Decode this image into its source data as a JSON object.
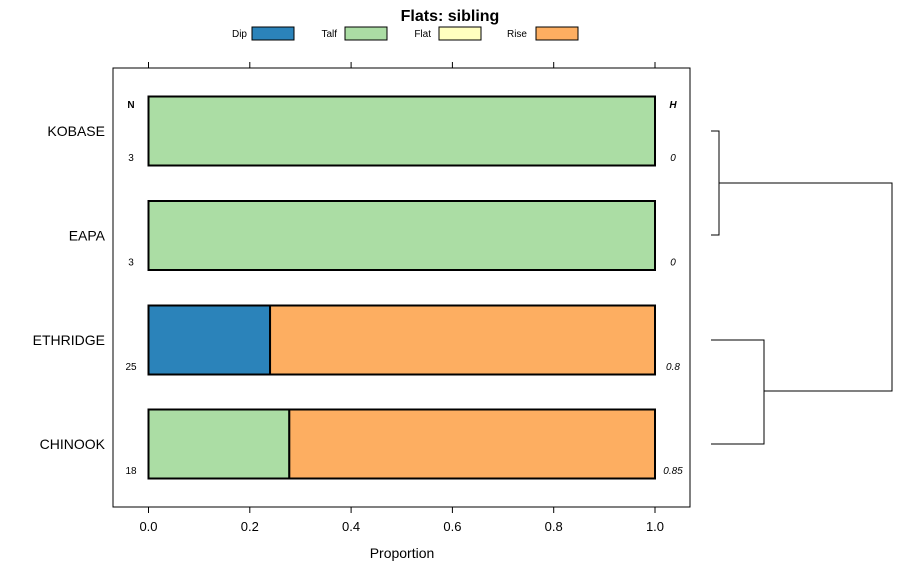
{
  "chart_data": {
    "type": "bar",
    "orientation": "horizontal",
    "stacked": true,
    "title": "Flats: sibling",
    "xlabel": "Proportion",
    "ylabel": "",
    "xlim": [
      -0.07,
      1.07
    ],
    "x_ticks": [
      0.0,
      0.2,
      0.4,
      0.6,
      0.8,
      1.0
    ],
    "x_tick_labels": [
      "0.0",
      "0.2",
      "0.4",
      "0.6",
      "0.8",
      "1.0"
    ],
    "categories": [
      "KOBASE",
      "EAPA",
      "ETHRIDGE",
      "CHINOOK"
    ],
    "series": [
      {
        "name": "Dip",
        "color": "#2B83BA",
        "values": [
          0,
          0,
          0.24,
          0
        ]
      },
      {
        "name": "Talf",
        "color": "#ABDDA4",
        "values": [
          1,
          1,
          0,
          0.278
        ]
      },
      {
        "name": "Flat",
        "color": "#FFFFBF",
        "values": [
          0,
          0,
          0,
          0
        ]
      },
      {
        "name": "Rise",
        "color": "#FDAE61",
        "values": [
          0,
          0,
          0.76,
          0.722
        ]
      }
    ],
    "n_header": "N",
    "h_header": "H",
    "n_values": [
      "3",
      "3",
      "25",
      "18"
    ],
    "h_values": [
      "0",
      "0",
      "0.8",
      "0.85"
    ],
    "legend_position": "top",
    "dendrogram": {
      "leaves": [
        "KOBASE",
        "EAPA",
        "ETHRIDGE",
        "CHINOOK"
      ],
      "merges": [
        {
          "left": "KOBASE",
          "right": "EAPA",
          "height": 0.05
        },
        {
          "left": "ETHRIDGE",
          "right": "CHINOOK",
          "height": 0.28
        },
        {
          "left": "cluster1",
          "right": "cluster2",
          "height": 1.0
        }
      ]
    }
  }
}
